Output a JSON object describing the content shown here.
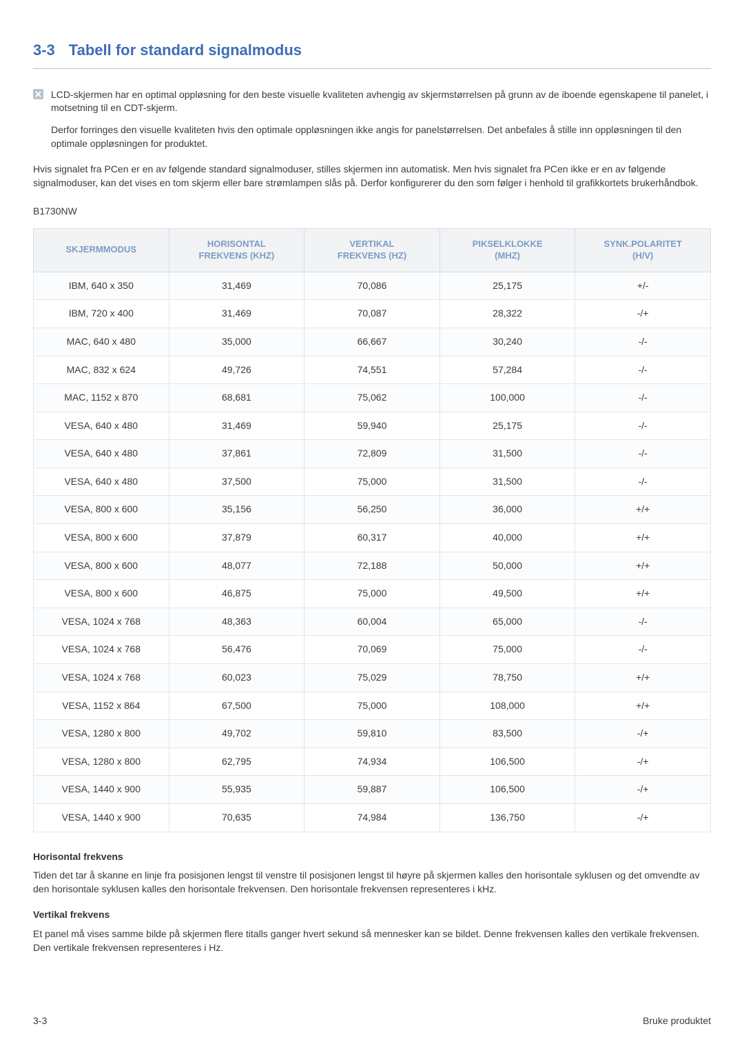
{
  "section": {
    "number": "3-3",
    "title": "Tabell for standard signalmodus"
  },
  "note": {
    "p1": "LCD-skjermen har en optimal oppløsning for den beste visuelle kvaliteten avhengig av skjermstørrelsen på grunn av de iboende egenskapene til panelet, i motsetning til en CDT-skjerm.",
    "p2": "Derfor forringes den visuelle kvaliteten hvis den optimale oppløsningen ikke angis for panelstørrelsen. Det anbefales å stille inn oppløsningen til den optimale oppløsningen for produktet."
  },
  "body_p": "Hvis signalet fra PCen er en av følgende standard signalmoduser, stilles skjermen inn automatisk. Men hvis signalet fra PCen ikke er en av følgende signalmoduser, kan det vises en tom skjerm eller bare strømlampen slås på. Derfor konfigurerer du den som følger i henhold til grafikkortets brukerhåndbok.",
  "model": "B1730NW",
  "table": {
    "columns": [
      {
        "l1": "SKJERMMODUS",
        "l2": ""
      },
      {
        "l1": "HORISONTAL",
        "l2": "FREKVENS (KHZ)"
      },
      {
        "l1": "VERTIKAL",
        "l2": "FREKVENS (HZ)"
      },
      {
        "l1": "PIKSELKLOKKE",
        "l2": "(MHZ)"
      },
      {
        "l1": "SYNK.POLARITET",
        "l2": "(H/V)"
      }
    ],
    "rows": [
      [
        "IBM, 640 x 350",
        "31,469",
        "70,086",
        "25,175",
        "+/-"
      ],
      [
        "IBM, 720 x 400",
        "31,469",
        "70,087",
        "28,322",
        "-/+"
      ],
      [
        "MAC, 640 x 480",
        "35,000",
        "66,667",
        "30,240",
        "-/-"
      ],
      [
        "MAC, 832 x 624",
        "49,726",
        "74,551",
        "57,284",
        "-/-"
      ],
      [
        "MAC, 1152 x 870",
        "68,681",
        "75,062",
        "100,000",
        "-/-"
      ],
      [
        "VESA, 640 x 480",
        "31,469",
        "59,940",
        "25,175",
        "-/-"
      ],
      [
        "VESA, 640 x 480",
        "37,861",
        "72,809",
        "31,500",
        "-/-"
      ],
      [
        "VESA, 640 x 480",
        "37,500",
        "75,000",
        "31,500",
        "-/-"
      ],
      [
        "VESA, 800 x 600",
        "35,156",
        "56,250",
        "36,000",
        "+/+"
      ],
      [
        "VESA, 800 x 600",
        "37,879",
        "60,317",
        "40,000",
        "+/+"
      ],
      [
        "VESA, 800 x 600",
        "48,077",
        "72,188",
        "50,000",
        "+/+"
      ],
      [
        "VESA, 800 x 600",
        "46,875",
        "75,000",
        "49,500",
        "+/+"
      ],
      [
        "VESA, 1024 x 768",
        "48,363",
        "60,004",
        "65,000",
        "-/-"
      ],
      [
        "VESA, 1024 x 768",
        "56,476",
        "70,069",
        "75,000",
        "-/-"
      ],
      [
        "VESA, 1024 x 768",
        "60,023",
        "75,029",
        "78,750",
        "+/+"
      ],
      [
        "VESA, 1152 x 864",
        "67,500",
        "75,000",
        "108,000",
        "+/+"
      ],
      [
        "VESA, 1280 x 800",
        "49,702",
        "59,810",
        "83,500",
        "-/+"
      ],
      [
        "VESA, 1280 x 800",
        "62,795",
        "74,934",
        "106,500",
        "-/+"
      ],
      [
        "VESA, 1440 x 900",
        "55,935",
        "59,887",
        "106,500",
        "-/+"
      ],
      [
        "VESA, 1440 x 900",
        "70,635",
        "74,984",
        "136,750",
        "-/+"
      ]
    ]
  },
  "defs": {
    "h_title": "Horisontal frekvens",
    "h_body": "Tiden det tar å skanne en linje fra posisjonen lengst til venstre til posisjonen lengst til høyre på skjermen kalles den horisontale syklusen og det omvendte av den horisontale syklusen kalles den horisontale frekvensen. Den horisontale frekvensen representeres i kHz.",
    "v_title": "Vertikal frekvens",
    "v_body": "Et panel må vises samme bilde på skjermen flere titalls ganger hvert sekund så mennesker kan se bildet. Denne frekvensen kalles den vertikale frekvensen. Den vertikale frekvensen representeres i Hz."
  },
  "footer": {
    "left": "3-3",
    "right": "Bruke produktet"
  },
  "colors": {
    "heading": "#3d6db5",
    "th_text": "#7a9cc6",
    "th_bg": "#f1f3f5",
    "border": "#d8dde2",
    "body_text": "#3a3a3a"
  }
}
